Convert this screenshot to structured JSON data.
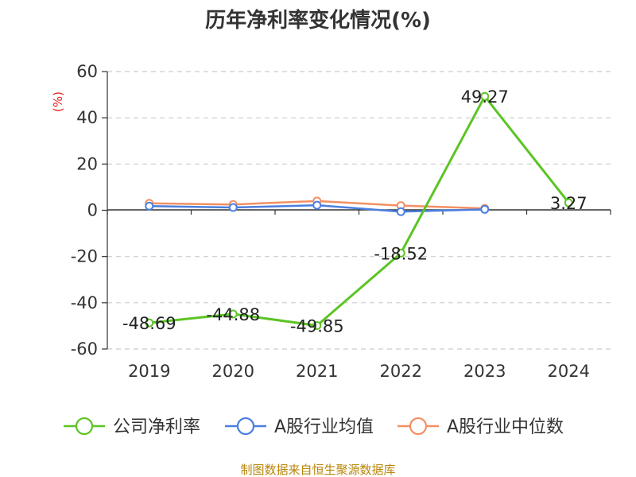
{
  "title": "历年净利率变化情况(%)",
  "source_note": "制图数据来自恒生聚源数据库",
  "chart_data": {
    "type": "line",
    "title": "历年净利率变化情况(%)",
    "ylabel": "(%)",
    "xlabel": "",
    "categories": [
      "2019",
      "2020",
      "2021",
      "2022",
      "2023",
      "2024"
    ],
    "ylim": [
      -60,
      60
    ],
    "yticks": [
      60,
      40,
      20,
      0,
      -20,
      -40,
      -60
    ],
    "grid": true,
    "legend_position": "bottom",
    "series": [
      {
        "name": "公司净利率",
        "color": "#5cc424",
        "values": [
          -48.69,
          -44.88,
          -49.85,
          -18.52,
          49.27,
          3.27
        ],
        "labels": [
          "-48.69",
          "-44.88",
          "-49.85",
          "-18.52",
          "49.27",
          "3.27"
        ]
      },
      {
        "name": "A股行业均值",
        "color": "#4a7fe0",
        "values": [
          1.8,
          1.2,
          2.2,
          -0.6,
          0.4,
          null
        ]
      },
      {
        "name": "A股行业中位数",
        "color": "#f39063",
        "values": [
          3.0,
          2.5,
          4.0,
          2.0,
          0.8,
          null
        ]
      }
    ]
  }
}
